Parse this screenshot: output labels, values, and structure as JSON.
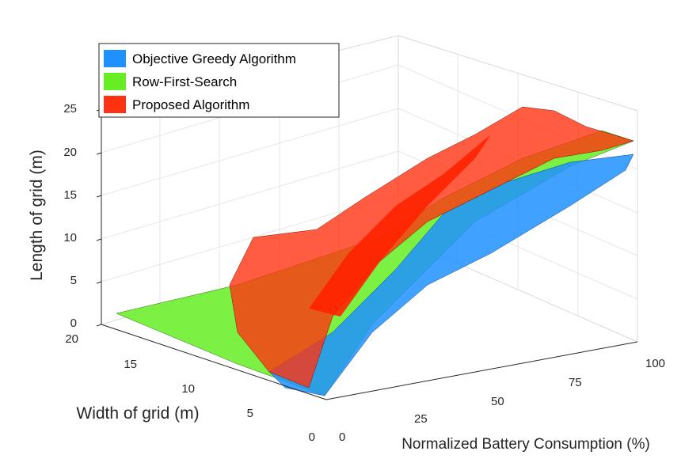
{
  "chart_data": {
    "type": "surface3d",
    "xlabel": "Width of grid (m)",
    "ylabel": "Length of grid (m)",
    "zlabel": "Normalized Battery Consumption (%)",
    "x_ticks": [
      "0",
      "5",
      "10",
      "15",
      "20"
    ],
    "y_ticks": [
      "0",
      "5",
      "10",
      "15",
      "20",
      "25"
    ],
    "z_ticks": [
      "0",
      "25",
      "50",
      "75",
      "100"
    ],
    "xlim": [
      0,
      20
    ],
    "ylim": [
      0,
      25
    ],
    "zlim": [
      0,
      100
    ],
    "grid": true,
    "legend_position": "top-left",
    "colors": {
      "objective_greedy": "#1e90ff",
      "row_first": "#66ee22",
      "proposed": "#ff3311"
    },
    "series": [
      {
        "name": "Objective Greedy Algorithm",
        "color": "#1e90ff",
        "description_points": [
          {
            "x": 0,
            "y": 0,
            "z": 3
          },
          {
            "x": 5,
            "y": 5,
            "z": 25
          },
          {
            "x": 10,
            "y": 10,
            "z": 50
          },
          {
            "x": 15,
            "y": 15,
            "z": 75
          },
          {
            "x": 20,
            "y": 20,
            "z": 100
          }
        ]
      },
      {
        "name": "Row-First-Search",
        "color": "#66ee22",
        "description_points": [
          {
            "x": 0,
            "y": 0,
            "z": 5
          },
          {
            "x": 5,
            "y": 5,
            "z": 28
          },
          {
            "x": 10,
            "y": 10,
            "z": 52
          },
          {
            "x": 15,
            "y": 15,
            "z": 78
          },
          {
            "x": 20,
            "y": 20,
            "z": 100
          }
        ]
      },
      {
        "name": "Proposed Algorithm",
        "color": "#ff3311",
        "description_points": [
          {
            "x": 0,
            "y": 0,
            "z": 2
          },
          {
            "x": 5,
            "y": 5,
            "z": 22
          },
          {
            "x": 10,
            "y": 10,
            "z": 45
          },
          {
            "x": 15,
            "y": 15,
            "z": 70
          },
          {
            "x": 20,
            "y": 20,
            "z": 100
          }
        ]
      }
    ]
  }
}
